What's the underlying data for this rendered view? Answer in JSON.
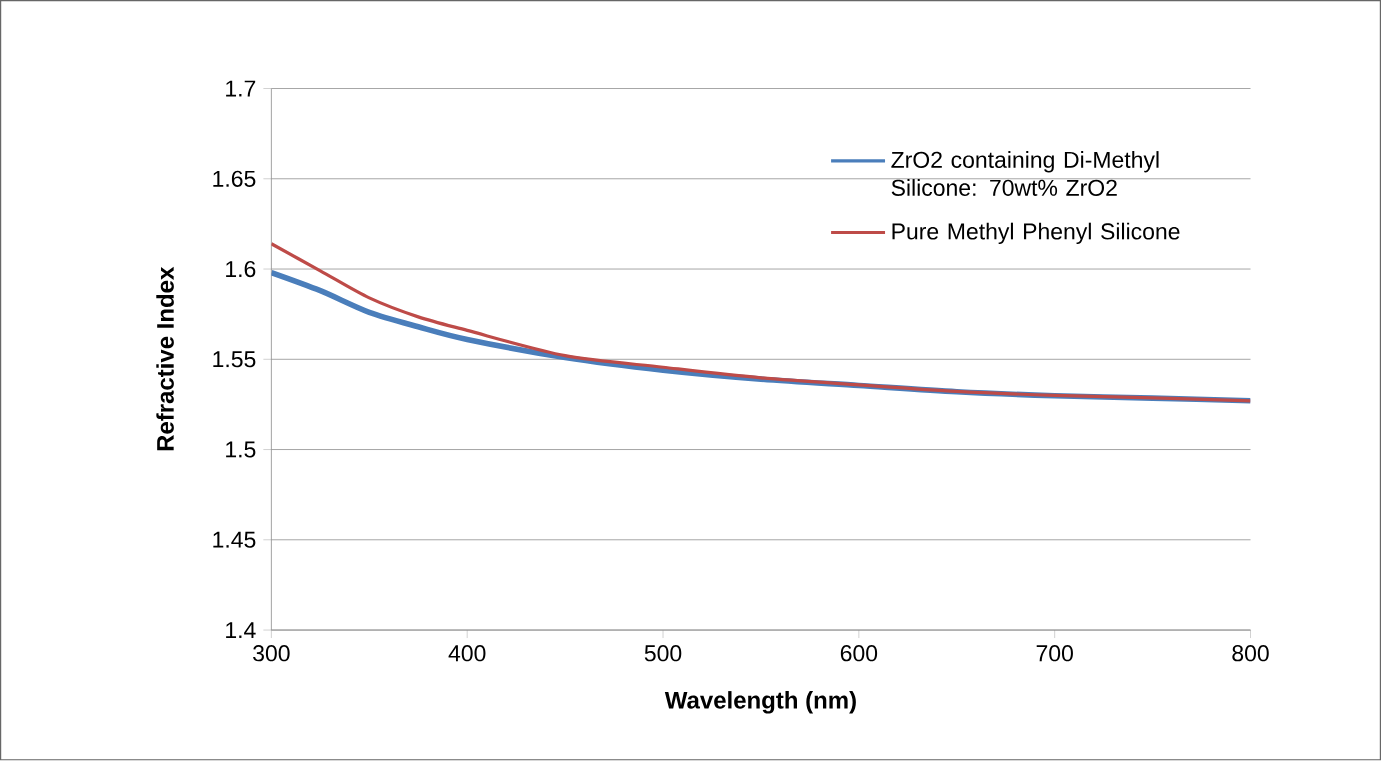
{
  "chart_data": {
    "type": "line",
    "xlabel": "Wavelength (nm)",
    "ylabel": "Refractive Index",
    "x": [
      300,
      325,
      350,
      375,
      400,
      450,
      500,
      550,
      600,
      650,
      700,
      750,
      800
    ],
    "series": [
      {
        "name": "ZrO2 containing Di-Methyl Silicone:  70wt% ZrO2",
        "color": "#4a7ebb",
        "values": [
          1.598,
          1.588,
          1.576,
          1.568,
          1.561,
          1.551,
          1.544,
          1.539,
          1.5355,
          1.532,
          1.5298,
          1.5285,
          1.527
        ]
      },
      {
        "name": "Pure Methyl Phenyl Silicone",
        "color": "#be4b48",
        "values": [
          1.614,
          1.599,
          1.584,
          1.5735,
          1.566,
          1.552,
          1.5456,
          1.5397,
          1.5358,
          1.5322,
          1.53,
          1.5286,
          1.527
        ]
      }
    ],
    "xlim": [
      300,
      800
    ],
    "xticks": [
      300,
      400,
      500,
      600,
      700,
      800
    ],
    "ylim": [
      1.4,
      1.7
    ],
    "yticks": [
      1.4,
      1.45,
      1.5,
      1.55,
      1.6,
      1.65,
      1.7
    ],
    "grid": "y",
    "legend": "top right",
    "marker": "none",
    "line_style": "solid"
  }
}
